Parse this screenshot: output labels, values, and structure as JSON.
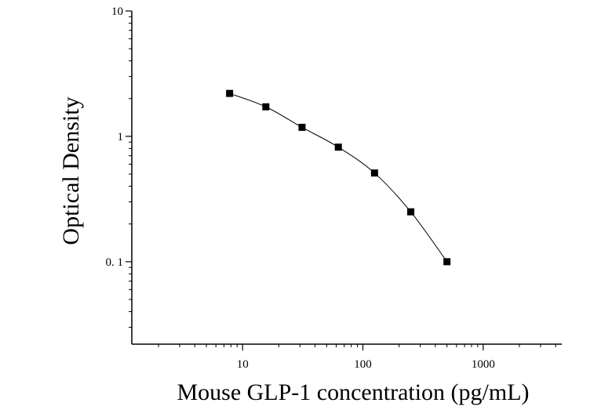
{
  "chart_data": {
    "type": "scatter",
    "xlabel": "Mouse GLP-1 concentration (pg/mL)",
    "ylabel": "Optical Density",
    "x_scale": "log",
    "y_scale": "log",
    "xlim": [
      1.2,
      4500
    ],
    "ylim": [
      0.022,
      10
    ],
    "x_ticks": [
      {
        "value": 10,
        "label": "10"
      },
      {
        "value": 100,
        "label": "100"
      },
      {
        "value": 1000,
        "label": "1000"
      }
    ],
    "y_ticks": [
      {
        "value": 0.1,
        "label": "0. 1"
      },
      {
        "value": 1,
        "label": "1"
      },
      {
        "value": 10,
        "label": "10"
      }
    ],
    "grid": false,
    "legend": "none",
    "marker": "square",
    "fit_curve": true,
    "series": [
      {
        "x": [
          7.8,
          15.6,
          31.2,
          62.5,
          125,
          250,
          500
        ],
        "y": [
          2.2,
          1.72,
          1.18,
          0.82,
          0.51,
          0.25,
          0.1
        ]
      }
    ]
  }
}
